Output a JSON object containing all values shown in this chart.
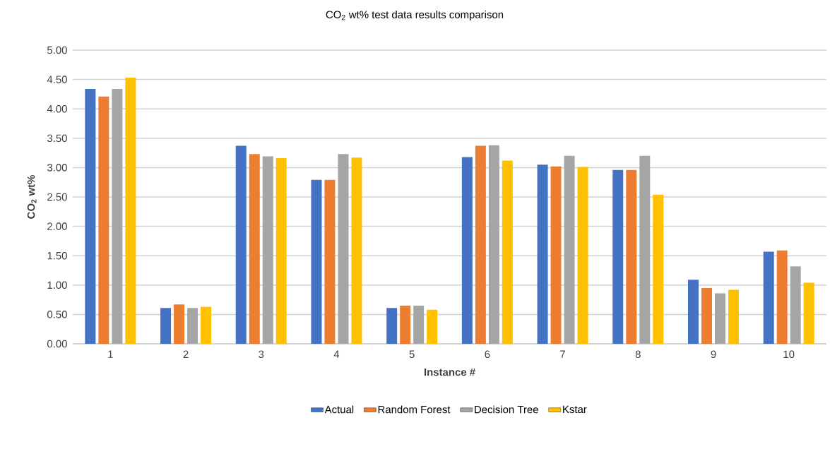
{
  "chart_data": {
    "type": "bar",
    "title": "CO$_{2}$ wt% test data results comparison",
    "xlabel": "Instance #",
    "ylabel": "CO$_{2}$ wt%",
    "categories": [
      "1",
      "2",
      "3",
      "4",
      "5",
      "6",
      "7",
      "8",
      "9",
      "10"
    ],
    "series": [
      {
        "name": "Actual",
        "color": "#4472c4",
        "values": [
          4.34,
          0.61,
          3.37,
          2.79,
          0.61,
          3.18,
          3.05,
          2.96,
          1.09,
          1.57
        ]
      },
      {
        "name": "Random Forest",
        "color": "#ed7d31",
        "values": [
          4.21,
          0.67,
          3.23,
          2.79,
          0.65,
          3.37,
          3.02,
          2.96,
          0.95,
          1.59
        ]
      },
      {
        "name": "Decision Tree",
        "color": "#a5a5a5",
        "values": [
          4.34,
          0.61,
          3.19,
          3.23,
          0.65,
          3.38,
          3.2,
          3.2,
          0.86,
          1.32
        ]
      },
      {
        "name": "Kstar",
        "color": "#ffc000",
        "values": [
          4.53,
          0.63,
          3.16,
          3.17,
          0.58,
          3.12,
          3.01,
          2.54,
          0.92,
          1.04
        ]
      }
    ],
    "ylim": [
      0,
      5
    ],
    "yticks": [
      {
        "value": 0,
        "label": "0.00"
      },
      {
        "value": 0.5,
        "label": "0.50"
      },
      {
        "value": 1,
        "label": "1.00"
      },
      {
        "value": 1.5,
        "label": "1.50"
      },
      {
        "value": 2,
        "label": "2.00"
      },
      {
        "value": 2.5,
        "label": "2.50"
      },
      {
        "value": 3,
        "label": "3.00"
      },
      {
        "value": 3.5,
        "label": "3.50"
      },
      {
        "value": 4,
        "label": "4.00"
      },
      {
        "value": 4.5,
        "label": "4.50"
      },
      {
        "value": 5,
        "label": "5.00"
      }
    ],
    "grid": true,
    "legend": "bottom"
  }
}
